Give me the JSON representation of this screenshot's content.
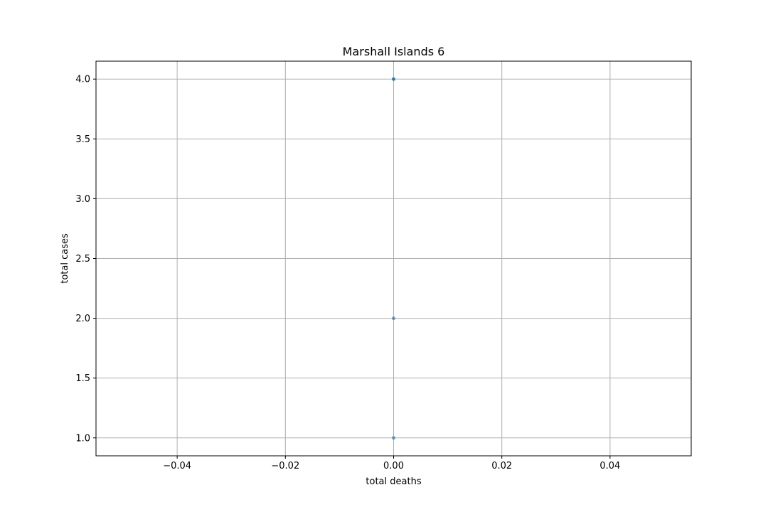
{
  "chart_data": {
    "type": "scatter",
    "title": "Marshall Islands 6",
    "xlabel": "total deaths",
    "ylabel": "total cases",
    "xlim": [
      -0.055,
      0.055
    ],
    "ylim": [
      0.85,
      4.15
    ],
    "xticks": [
      -0.04,
      -0.02,
      0.0,
      0.02,
      0.04
    ],
    "xtick_labels": [
      "−0.04",
      "−0.02",
      "0.00",
      "0.02",
      "0.04"
    ],
    "yticks": [
      1.0,
      1.5,
      2.0,
      2.5,
      3.0,
      3.5,
      4.0
    ],
    "ytick_labels": [
      "1.0",
      "1.5",
      "2.0",
      "2.5",
      "3.0",
      "3.5",
      "4.0"
    ],
    "grid": true,
    "series": [
      {
        "points": [
          {
            "x": 0.0,
            "y": 1
          },
          {
            "x": 0.0,
            "y": 2
          },
          {
            "x": 0.0,
            "y": 4
          },
          {
            "x": 0.0,
            "y": 4
          },
          {
            "x": 0.0,
            "y": 4
          }
        ],
        "color": "#1f77b4"
      }
    ]
  }
}
